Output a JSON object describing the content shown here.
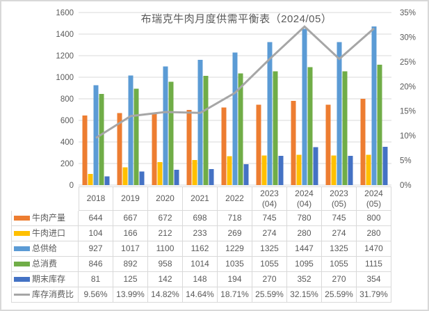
{
  "chart_data": {
    "type": "bar+line",
    "title": "布瑞克牛肉月度供需平衡表（2024/05）",
    "categories": [
      "2018",
      "2019",
      "2020",
      "2021",
      "2022",
      "2023 (04)",
      "2024 (04)",
      "2023 (05)",
      "2024 (05)"
    ],
    "category_lines": [
      [
        "2018"
      ],
      [
        "2019"
      ],
      [
        "2020"
      ],
      [
        "2021"
      ],
      [
        "2022"
      ],
      [
        "2023",
        "(04)"
      ],
      [
        "2024",
        "(04)"
      ],
      [
        "2023",
        "(05)"
      ],
      [
        "2024",
        "(05)"
      ]
    ],
    "series": [
      {
        "key": "beef-production",
        "name": "牛肉产量",
        "type": "bar",
        "color": "#ED7D31",
        "values": [
          644,
          667,
          672,
          698,
          718,
          745,
          780,
          745,
          800
        ]
      },
      {
        "key": "beef-import",
        "name": "牛肉进口",
        "type": "bar",
        "color": "#FFC000",
        "values": [
          104,
          166,
          212,
          233,
          269,
          274,
          280,
          274,
          280
        ]
      },
      {
        "key": "total-supply",
        "name": "总供给",
        "type": "bar",
        "color": "#5B9BD5",
        "values": [
          927,
          1017,
          1100,
          1162,
          1229,
          1325,
          1447,
          1325,
          1470
        ]
      },
      {
        "key": "total-consumption",
        "name": "总消费",
        "type": "bar",
        "color": "#70AD47",
        "values": [
          846,
          892,
          958,
          1014,
          1035,
          1055,
          1095,
          1055,
          1115
        ]
      },
      {
        "key": "ending-inventory",
        "name": "期末库存",
        "type": "bar",
        "color": "#4472C4",
        "values": [
          81,
          125,
          142,
          148,
          194,
          270,
          352,
          270,
          354
        ]
      },
      {
        "key": "inventory-consumption-ratio",
        "name": "库存消费比",
        "type": "line",
        "axis": "right",
        "color": "#A6A6A6",
        "values": [
          9.56,
          13.99,
          14.82,
          14.64,
          18.71,
          25.59,
          32.15,
          25.59,
          31.79
        ],
        "labels": [
          "9.56%",
          "13.99%",
          "14.82%",
          "14.64%",
          "18.71%",
          "25.59%",
          "32.15%",
          "25.59%",
          "31.79%"
        ]
      }
    ],
    "left_axis": {
      "min": 0,
      "max": 1600,
      "step": 200,
      "ticks": [
        "0",
        "200",
        "400",
        "600",
        "800",
        "1000",
        "1200",
        "1400",
        "1600"
      ]
    },
    "right_axis": {
      "min": 0,
      "max": 35,
      "step": 5,
      "ticks": [
        "0%",
        "5%",
        "10%",
        "15%",
        "20%",
        "25%",
        "30%",
        "35%"
      ]
    },
    "grid": true,
    "legend_position": "table-left",
    "colors": {
      "grid": "#D9D9D9",
      "text": "#595959",
      "table_border": "#D9D9D9",
      "frame": "#D8D8D8"
    }
  }
}
